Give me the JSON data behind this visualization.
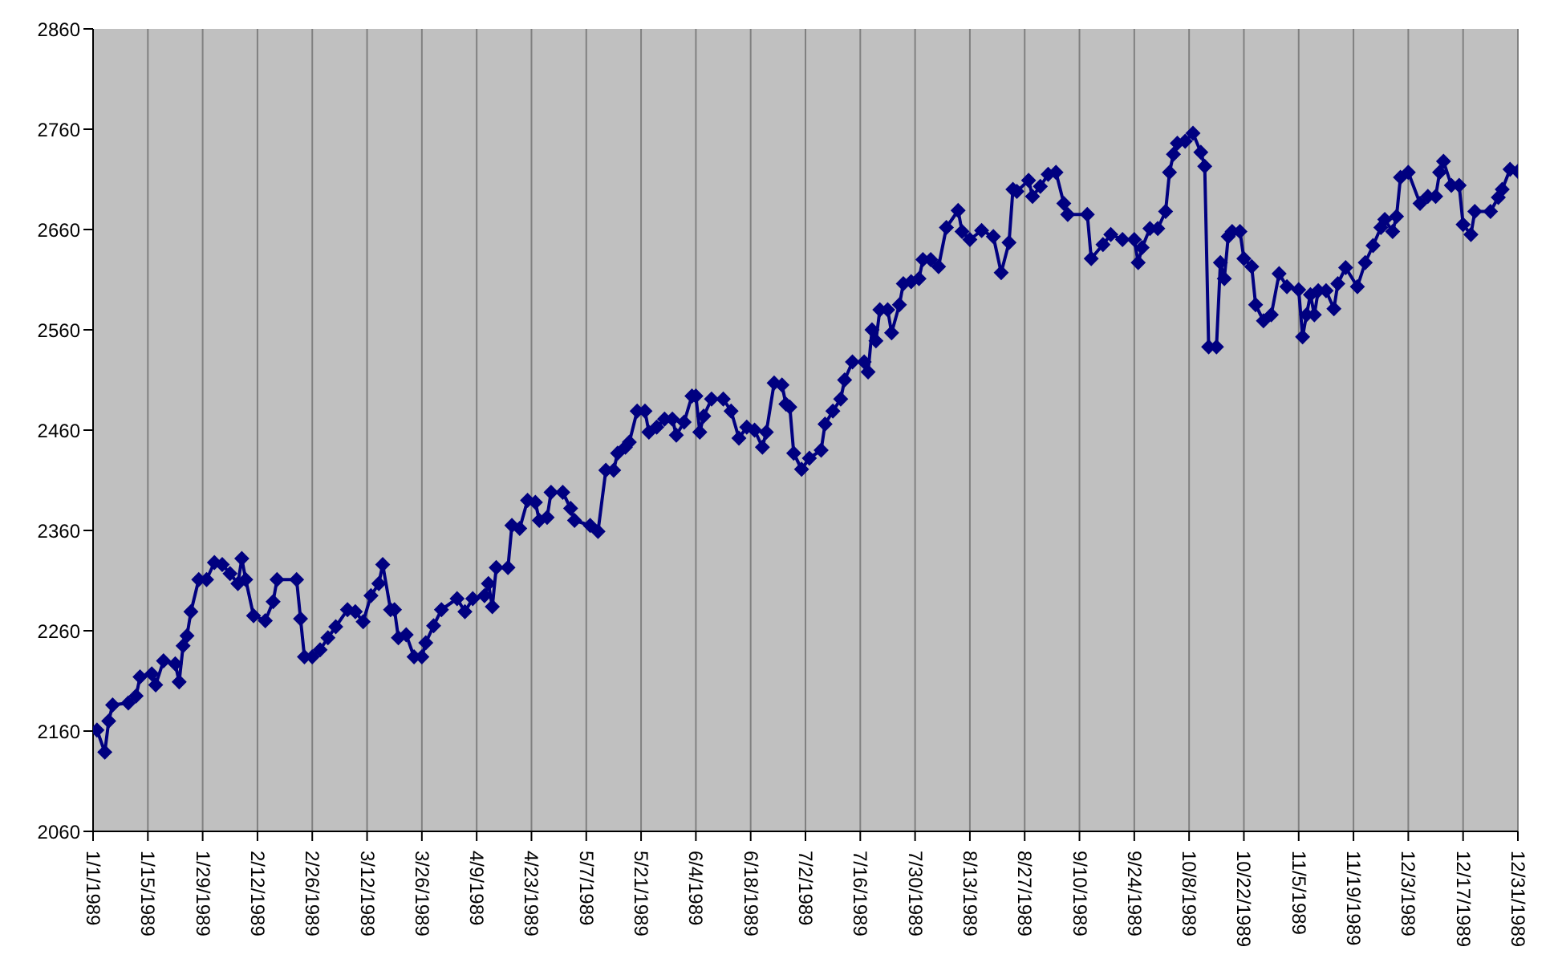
{
  "chart_data": {
    "type": "line",
    "x": [
      "1989-01-02",
      "1989-01-04",
      "1989-01-05",
      "1989-01-06",
      "1989-01-10",
      "1989-01-12",
      "1989-01-13",
      "1989-01-16",
      "1989-01-17",
      "1989-01-19",
      "1989-01-22",
      "1989-01-23",
      "1989-01-24",
      "1989-01-25",
      "1989-01-26",
      "1989-01-28",
      "1989-01-30",
      "1989-02-01",
      "1989-02-03",
      "1989-02-05",
      "1989-02-07",
      "1989-02-08",
      "1989-02-09",
      "1989-02-11",
      "1989-02-14",
      "1989-02-16",
      "1989-02-17",
      "1989-02-22",
      "1989-02-23",
      "1989-02-24",
      "1989-02-26",
      "1989-02-28",
      "1989-03-02",
      "1989-03-04",
      "1989-03-07",
      "1989-03-09",
      "1989-03-11",
      "1989-03-13",
      "1989-03-15",
      "1989-03-16",
      "1989-03-18",
      "1989-03-19",
      "1989-03-20",
      "1989-03-22",
      "1989-03-24",
      "1989-03-26",
      "1989-03-27",
      "1989-03-29",
      "1989-03-31",
      "1989-04-04",
      "1989-04-06",
      "1989-04-08",
      "1989-04-11",
      "1989-04-12",
      "1989-04-13",
      "1989-04-14",
      "1989-04-17",
      "1989-04-18",
      "1989-04-20",
      "1989-04-22",
      "1989-04-24",
      "1989-04-25",
      "1989-04-27",
      "1989-04-28",
      "1989-05-01",
      "1989-05-03",
      "1989-05-04",
      "1989-05-08",
      "1989-05-10",
      "1989-05-12",
      "1989-05-14",
      "1989-05-15",
      "1989-05-17",
      "1989-05-18",
      "1989-05-20",
      "1989-05-22",
      "1989-05-23",
      "1989-05-25",
      "1989-05-27",
      "1989-05-29",
      "1989-05-30",
      "1989-06-01",
      "1989-06-03",
      "1989-06-04",
      "1989-06-05",
      "1989-06-06",
      "1989-06-08",
      "1989-06-11",
      "1989-06-13",
      "1989-06-15",
      "1989-06-17",
      "1989-06-19",
      "1989-06-21",
      "1989-06-22",
      "1989-06-24",
      "1989-06-26",
      "1989-06-27",
      "1989-06-28",
      "1989-06-29",
      "1989-07-01",
      "1989-07-03",
      "1989-07-06",
      "1989-07-07",
      "1989-07-09",
      "1989-07-11",
      "1989-07-12",
      "1989-07-14",
      "1989-07-17",
      "1989-07-18",
      "1989-07-19",
      "1989-07-20",
      "1989-07-21",
      "1989-07-23",
      "1989-07-24",
      "1989-07-26",
      "1989-07-27",
      "1989-07-29",
      "1989-07-31",
      "1989-08-01",
      "1989-08-03",
      "1989-08-05",
      "1989-08-07",
      "1989-08-10",
      "1989-08-11",
      "1989-08-13",
      "1989-08-16",
      "1989-08-19",
      "1989-08-21",
      "1989-08-23",
      "1989-08-24",
      "1989-08-25",
      "1989-08-28",
      "1989-08-29",
      "1989-08-31",
      "1989-09-02",
      "1989-09-04",
      "1989-09-06",
      "1989-09-07",
      "1989-09-12",
      "1989-09-13",
      "1989-09-16",
      "1989-09-18",
      "1989-09-21",
      "1989-09-24",
      "1989-09-25",
      "1989-09-26",
      "1989-09-28",
      "1989-09-30",
      "1989-10-02",
      "1989-10-03",
      "1989-10-04",
      "1989-10-05",
      "1989-10-07",
      "1989-10-09",
      "1989-10-11",
      "1989-10-12",
      "1989-10-13",
      "1989-10-15",
      "1989-10-16",
      "1989-10-17",
      "1989-10-18",
      "1989-10-19",
      "1989-10-21",
      "1989-10-22",
      "1989-10-24",
      "1989-10-25",
      "1989-10-27",
      "1989-10-29",
      "1989-10-31",
      "1989-11-02",
      "1989-11-05",
      "1989-11-06",
      "1989-11-07",
      "1989-11-08",
      "1989-11-09",
      "1989-11-10",
      "1989-11-12",
      "1989-11-14",
      "1989-11-15",
      "1989-11-17",
      "1989-11-20",
      "1989-11-22",
      "1989-11-24",
      "1989-11-26",
      "1989-11-27",
      "1989-11-29",
      "1989-11-30",
      "1989-12-01",
      "1989-12-03",
      "1989-12-06",
      "1989-12-08",
      "1989-12-10",
      "1989-12-11",
      "1989-12-12",
      "1989-12-14",
      "1989-12-16",
      "1989-12-17",
      "1989-12-19",
      "1989-12-20",
      "1989-12-24",
      "1989-12-26",
      "1989-12-27",
      "1989-12-29",
      "1989-12-31"
    ],
    "series": [
      {
        "color": "#000080",
        "values": [
          2161,
          2139,
          2170,
          2186,
          2188,
          2195,
          2214,
          2217,
          2206,
          2230,
          2227,
          2209,
          2245,
          2255,
          2279,
          2311,
          2311,
          2328,
          2326,
          2317,
          2307,
          2332,
          2311,
          2275,
          2270,
          2289,
          2311,
          2311,
          2272,
          2234,
          2234,
          2241,
          2253,
          2264,
          2281,
          2279,
          2269,
          2295,
          2307,
          2326,
          2281,
          2281,
          2253,
          2256,
          2234,
          2234,
          2248,
          2265,
          2281,
          2292,
          2279,
          2292,
          2295,
          2307,
          2284,
          2323,
          2323,
          2365,
          2362,
          2390,
          2388,
          2370,
          2373,
          2398,
          2398,
          2382,
          2370,
          2365,
          2359,
          2420,
          2420,
          2437,
          2443,
          2448,
          2479,
          2479,
          2458,
          2463,
          2471,
          2471,
          2455,
          2468,
          2494,
          2494,
          2458,
          2474,
          2491,
          2491,
          2479,
          2452,
          2463,
          2460,
          2443,
          2458,
          2507,
          2505,
          2486,
          2483,
          2437,
          2421,
          2432,
          2440,
          2466,
          2479,
          2491,
          2510,
          2528,
          2528,
          2518,
          2560,
          2549,
          2580,
          2580,
          2557,
          2585,
          2606,
          2608,
          2611,
          2630,
          2630,
          2623,
          2662,
          2679,
          2658,
          2650,
          2659,
          2653,
          2617,
          2647,
          2700,
          2698,
          2709,
          2693,
          2703,
          2715,
          2717,
          2686,
          2675,
          2675,
          2631,
          2645,
          2655,
          2650,
          2650,
          2627,
          2642,
          2661,
          2661,
          2678,
          2717,
          2735,
          2746,
          2748,
          2756,
          2737,
          2723,
          2543,
          2543,
          2627,
          2611,
          2653,
          2658,
          2658,
          2631,
          2623,
          2585,
          2569,
          2575,
          2616,
          2603,
          2600,
          2553,
          2575,
          2595,
          2575,
          2599,
          2599,
          2581,
          2606,
          2622,
          2603,
          2627,
          2644,
          2662,
          2670,
          2658,
          2673,
          2712,
          2717,
          2686,
          2693,
          2693,
          2717,
          2728,
          2704,
          2704,
          2665,
          2655,
          2678,
          2678,
          2692,
          2700,
          2720,
          2718
        ]
      }
    ],
    "xlim": [
      "1989-01-01",
      "1989-12-31"
    ],
    "xticks": [
      {
        "value": "1989-01-01",
        "label": "1/1/1989"
      },
      {
        "value": "1989-01-15",
        "label": "1/15/1989"
      },
      {
        "value": "1989-01-29",
        "label": "1/29/1989"
      },
      {
        "value": "1989-02-12",
        "label": "2/12/1989"
      },
      {
        "value": "1989-02-26",
        "label": "2/26/1989"
      },
      {
        "value": "1989-03-12",
        "label": "3/12/1989"
      },
      {
        "value": "1989-03-26",
        "label": "3/26/1989"
      },
      {
        "value": "1989-04-09",
        "label": "4/9/1989"
      },
      {
        "value": "1989-04-23",
        "label": "4/23/1989"
      },
      {
        "value": "1989-05-07",
        "label": "5/7/1989"
      },
      {
        "value": "1989-05-21",
        "label": "5/21/1989"
      },
      {
        "value": "1989-06-04",
        "label": "6/4/1989"
      },
      {
        "value": "1989-06-18",
        "label": "6/18/1989"
      },
      {
        "value": "1989-07-02",
        "label": "7/2/1989"
      },
      {
        "value": "1989-07-16",
        "label": "7/16/1989"
      },
      {
        "value": "1989-07-30",
        "label": "7/30/1989"
      },
      {
        "value": "1989-08-13",
        "label": "8/13/1989"
      },
      {
        "value": "1989-08-27",
        "label": "8/27/1989"
      },
      {
        "value": "1989-09-10",
        "label": "9/10/1989"
      },
      {
        "value": "1989-09-24",
        "label": "9/24/1989"
      },
      {
        "value": "1989-10-08",
        "label": "10/8/1989"
      },
      {
        "value": "1989-10-22",
        "label": "10/22/1989"
      },
      {
        "value": "1989-11-05",
        "label": "11/5/1989"
      },
      {
        "value": "1989-11-19",
        "label": "11/19/1989"
      },
      {
        "value": "1989-12-03",
        "label": "12/3/1989"
      },
      {
        "value": "1989-12-17",
        "label": "12/17/1989"
      },
      {
        "value": "1989-12-31",
        "label": "12/31/1989"
      }
    ],
    "ylim": [
      2060,
      2860
    ],
    "yticks": [
      2060,
      2160,
      2260,
      2360,
      2460,
      2560,
      2660,
      2760,
      2860
    ],
    "grid": "x",
    "legend": false,
    "marker": "diamond",
    "line_style": "solid"
  }
}
